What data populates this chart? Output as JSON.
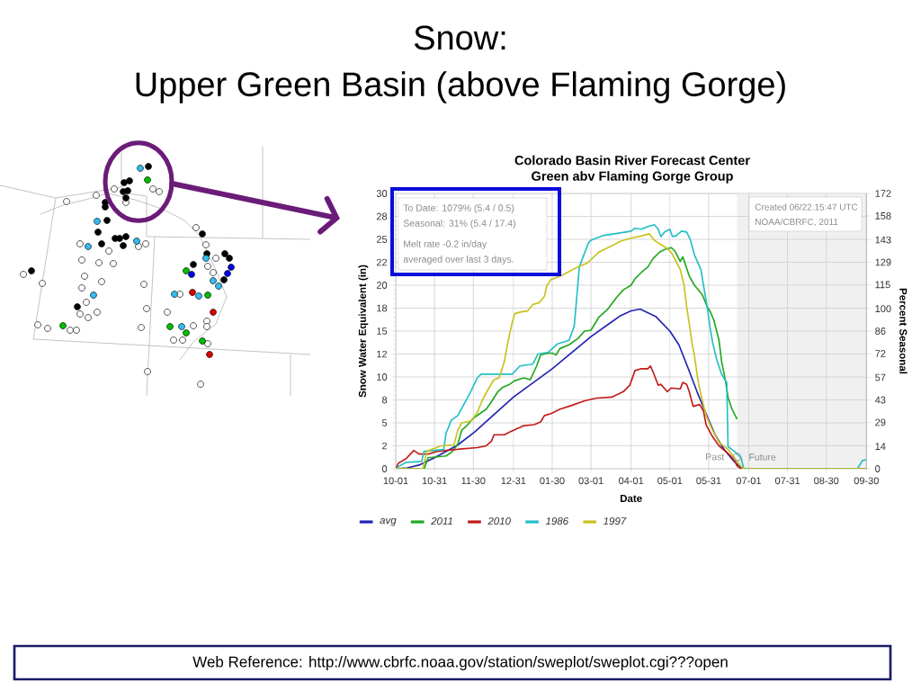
{
  "chart_data": {
    "type": "line",
    "title": "Snow:",
    "subtitle": "Upper Green Basin (above Flaming Gorge)",
    "xlabel": "Date",
    "ylabel": "Snow Water Equivalent (in)",
    "y2label": "Percent Seasonal",
    "xlim": [
      "2010-10-01",
      "2011-09-30"
    ],
    "xticks": [
      {
        "value": "2010-10-01",
        "label": "10-01"
      },
      {
        "value": "2010-10-31",
        "label": "10-31"
      },
      {
        "value": "2010-11-30",
        "label": "11-30"
      },
      {
        "value": "2010-12-31",
        "label": "12-31"
      },
      {
        "value": "2011-01-30",
        "label": "01-30"
      },
      {
        "value": "2011-03-01",
        "label": "03-01"
      },
      {
        "value": "2011-04-01",
        "label": "04-01"
      },
      {
        "value": "2011-05-01",
        "label": "05-01"
      },
      {
        "value": "2011-05-31",
        "label": "05-31"
      },
      {
        "value": "2011-07-01",
        "label": "07-01"
      },
      {
        "value": "2011-07-31",
        "label": "07-31"
      },
      {
        "value": "2011-08-30",
        "label": "08-30"
      },
      {
        "value": "2011-09-30",
        "label": "09-30"
      }
    ],
    "ylim": [
      0,
      30
    ],
    "yticks": [
      {
        "value": 0,
        "label": "0"
      },
      {
        "value": 2.5,
        "label": "2"
      },
      {
        "value": 5,
        "label": "5"
      },
      {
        "value": 7.5,
        "label": "8"
      },
      {
        "value": 10,
        "label": "10"
      },
      {
        "value": 12.5,
        "label": "12"
      },
      {
        "value": 15,
        "label": "15"
      },
      {
        "value": 17.5,
        "label": "18"
      },
      {
        "value": 20,
        "label": "20"
      },
      {
        "value": 22.5,
        "label": "22"
      },
      {
        "value": 25,
        "label": "25"
      },
      {
        "value": 27.5,
        "label": "28"
      },
      {
        "value": 30,
        "label": "30"
      }
    ],
    "y2lim": [
      0,
      172
    ],
    "y2ticks": [
      0,
      14,
      29,
      43,
      57,
      72,
      86,
      100,
      115,
      129,
      143,
      158,
      172
    ],
    "grid": true,
    "legend": "bottom",
    "series": [
      {
        "name": "avg",
        "color": "#2323b4",
        "x": [
          "2010-10-01",
          "2010-10-10",
          "2010-10-19",
          "2010-10-31",
          "2010-11-18",
          "2010-12-01",
          "2010-12-31",
          "2011-01-30",
          "2011-03-01",
          "2011-03-17",
          "2011-03-24",
          "2011-04-01",
          "2011-04-08",
          "2011-04-20",
          "2011-05-01",
          "2011-05-08",
          "2011-05-15",
          "2011-05-22",
          "2011-05-29",
          "2011-06-05",
          "2011-06-12",
          "2011-06-19",
          "2011-06-22",
          "2011-06-26",
          "2011-09-30"
        ],
        "values": [
          0,
          0.1,
          0.4,
          1.2,
          2.6,
          4.0,
          7.8,
          10.9,
          14.4,
          16.0,
          16.7,
          17.2,
          17.4,
          16.6,
          15.0,
          13.5,
          11.0,
          8.4,
          6.0,
          3.7,
          2.1,
          0.9,
          0.5,
          0,
          0
        ]
      },
      {
        "name": "2011",
        "color": "#21a821",
        "x": [
          "2010-10-01",
          "2010-10-23",
          "2010-10-26",
          "2010-11-09",
          "2010-11-14",
          "2010-11-18",
          "2010-11-21",
          "2010-11-25",
          "2010-11-30",
          "2010-12-05",
          "2010-12-10",
          "2010-12-14",
          "2010-12-19",
          "2010-12-23",
          "2010-12-28",
          "2011-01-01",
          "2011-01-08",
          "2011-01-13",
          "2011-01-18",
          "2011-01-21",
          "2011-01-27",
          "2011-01-30",
          "2011-02-02",
          "2011-02-05",
          "2011-02-12",
          "2011-02-19",
          "2011-02-24",
          "2011-03-01",
          "2011-03-07",
          "2011-03-14",
          "2011-03-21",
          "2011-03-26",
          "2011-04-01",
          "2011-04-04",
          "2011-04-09",
          "2011-04-14",
          "2011-04-18",
          "2011-04-23",
          "2011-04-27",
          "2011-05-02",
          "2011-05-05",
          "2011-05-09",
          "2011-05-11",
          "2011-05-16",
          "2011-05-20",
          "2011-05-26",
          "2011-05-30",
          "2011-06-01",
          "2011-06-04",
          "2011-06-08",
          "2011-06-10",
          "2011-06-13",
          "2011-06-15",
          "2011-06-18",
          "2011-06-22"
        ],
        "values": [
          0,
          0,
          1.2,
          1.4,
          1.9,
          2.7,
          4.2,
          4.7,
          5.5,
          6.0,
          6.5,
          7.3,
          8.4,
          8.9,
          9.2,
          9.6,
          9.9,
          9.7,
          11.2,
          12.4,
          12.6,
          12.6,
          12.4,
          13.1,
          13.5,
          14.2,
          15.0,
          15.1,
          16.5,
          17.4,
          18.7,
          19.5,
          20.0,
          20.7,
          21.4,
          22.0,
          22.9,
          23.6,
          23.9,
          24.1,
          23.7,
          22.6,
          23.1,
          21.0,
          20.0,
          19.0,
          17.6,
          17.2,
          16.2,
          14.0,
          11.7,
          9.6,
          7.8,
          6.5,
          5.4
        ]
      },
      {
        "name": "2010",
        "color": "#c21a1a",
        "x": [
          "2010-10-01",
          "2010-10-03",
          "2010-10-09",
          "2010-10-15",
          "2010-10-19",
          "2010-10-26",
          "2010-11-02",
          "2010-11-16",
          "2010-12-03",
          "2010-12-10",
          "2010-12-14",
          "2010-12-16",
          "2010-12-24",
          "2010-12-28",
          "2011-01-05",
          "2011-01-08",
          "2011-01-16",
          "2011-01-21",
          "2011-01-24",
          "2011-01-29",
          "2011-02-05",
          "2011-02-14",
          "2011-02-24",
          "2011-03-05",
          "2011-03-17",
          "2011-03-26",
          "2011-03-31",
          "2011-04-04",
          "2011-04-09",
          "2011-04-14",
          "2011-04-16",
          "2011-04-19",
          "2011-04-22",
          "2011-04-24",
          "2011-04-29",
          "2011-05-02",
          "2011-05-09",
          "2011-05-11",
          "2011-05-14",
          "2011-05-16",
          "2011-05-19",
          "2011-05-24",
          "2011-05-27",
          "2011-05-29",
          "2011-06-03",
          "2011-06-08",
          "2011-06-13",
          "2011-06-17",
          "2011-06-20",
          "2011-06-22",
          "2011-06-25",
          "2011-09-30"
        ],
        "values": [
          0,
          0.6,
          1.1,
          2.0,
          1.6,
          1.6,
          1.9,
          2.1,
          2.3,
          2.5,
          3.0,
          3.7,
          3.7,
          4.0,
          4.5,
          4.7,
          4.8,
          5.1,
          5.8,
          6.0,
          6.5,
          6.9,
          7.4,
          7.7,
          7.8,
          8.4,
          9.1,
          10.7,
          10.9,
          10.9,
          11.2,
          10.2,
          9.1,
          9.2,
          8.4,
          8.8,
          8.7,
          9.4,
          9.2,
          8.4,
          6.8,
          7.0,
          6.3,
          4.8,
          3.5,
          2.5,
          1.9,
          1.4,
          0.9,
          0.3,
          0,
          0
        ]
      },
      {
        "name": "1986",
        "color": "#23bfc6",
        "x": [
          "2010-10-01",
          "2010-10-05",
          "2010-10-09",
          "2010-10-21",
          "2010-10-23",
          "2010-11-07",
          "2010-11-09",
          "2010-11-13",
          "2010-11-18",
          "2010-11-23",
          "2010-11-28",
          "2010-12-03",
          "2010-12-06",
          "2010-12-30",
          "2011-01-05",
          "2011-01-15",
          "2011-01-19",
          "2011-01-27",
          "2011-02-03",
          "2011-02-12",
          "2011-02-16",
          "2011-02-18",
          "2011-02-20",
          "2011-02-27",
          "2011-03-01",
          "2011-03-10",
          "2011-03-19",
          "2011-03-28",
          "2011-04-01",
          "2011-04-04",
          "2011-04-09",
          "2011-04-14",
          "2011-04-19",
          "2011-04-22",
          "2011-04-24",
          "2011-04-27",
          "2011-05-01",
          "2011-05-03",
          "2011-05-06",
          "2011-05-10",
          "2011-05-14",
          "2011-05-17",
          "2011-05-20",
          "2011-05-25",
          "2011-05-27",
          "2011-05-30",
          "2011-06-01",
          "2011-06-03",
          "2011-06-06",
          "2011-06-10",
          "2011-06-14",
          "2011-06-15",
          "2011-06-20",
          "2011-06-25",
          "2011-06-27",
          "2011-06-28",
          "2011-09-23",
          "2011-09-27",
          "2011-09-30"
        ],
        "values": [
          0,
          0.4,
          0.7,
          0.8,
          1.9,
          2.1,
          3.9,
          5.3,
          5.8,
          7.1,
          8.4,
          9.9,
          10.3,
          10.3,
          11.2,
          11.4,
          12.5,
          12.7,
          13.6,
          14.0,
          15.5,
          18.7,
          22.0,
          24.6,
          24.9,
          25.4,
          25.6,
          25.8,
          25.9,
          26.2,
          26.1,
          26.4,
          26.6,
          26.1,
          25.3,
          25.8,
          26.1,
          25.3,
          25.4,
          25.9,
          25.8,
          24.9,
          23.3,
          21.7,
          20.0,
          17.5,
          15.5,
          13.8,
          12.0,
          10.3,
          9.4,
          2.4,
          1.9,
          1.2,
          0.1,
          0,
          0,
          0.9,
          1.0
        ]
      },
      {
        "name": "1997",
        "color": "#c9c21e",
        "x": [
          "2010-10-01",
          "2010-10-22",
          "2010-10-25",
          "2010-11-05",
          "2010-11-15",
          "2010-11-18",
          "2010-11-21",
          "2010-11-28",
          "2010-12-03",
          "2010-12-07",
          "2010-12-12",
          "2010-12-16",
          "2010-12-20",
          "2010-12-24",
          "2010-12-27",
          "2010-12-30",
          "2011-01-01",
          "2011-01-06",
          "2011-01-11",
          "2011-01-15",
          "2011-01-20",
          "2011-01-24",
          "2011-01-26",
          "2011-01-29",
          "2011-02-07",
          "2011-02-19",
          "2011-02-26",
          "2011-03-07",
          "2011-03-17",
          "2011-03-24",
          "2011-03-31",
          "2011-04-07",
          "2011-04-15",
          "2011-04-19",
          "2011-04-22",
          "2011-04-28",
          "2011-05-02",
          "2011-05-05",
          "2011-05-09",
          "2011-05-12",
          "2011-05-14",
          "2011-05-16",
          "2011-05-18",
          "2011-05-20",
          "2011-05-23",
          "2011-05-26",
          "2011-05-29",
          "2011-06-03",
          "2011-06-08",
          "2011-06-15",
          "2011-06-20",
          "2011-06-24",
          "2011-06-27",
          "2011-09-30"
        ],
        "values": [
          0,
          0,
          1.9,
          2.5,
          2.6,
          4.2,
          5.0,
          5.2,
          6.1,
          7.5,
          8.8,
          9.7,
          9.9,
          11.7,
          14.0,
          15.9,
          16.9,
          17.1,
          17.2,
          17.9,
          18.1,
          18.8,
          20.0,
          20.6,
          21.1,
          22.0,
          22.4,
          23.6,
          24.3,
          24.8,
          25.1,
          25.3,
          25.6,
          24.9,
          24.6,
          24.1,
          23.6,
          22.8,
          21.7,
          20.0,
          17.6,
          15.8,
          13.8,
          12.3,
          9.4,
          7.5,
          5.8,
          4.2,
          2.9,
          2.1,
          1.2,
          0.4,
          0,
          0
        ]
      }
    ],
    "bands": [
      {
        "axis": "x",
        "from": "2011-06-22",
        "to": "2011-09-30",
        "label": "Future",
        "color": "#f0f0f0"
      }
    ],
    "annotations": [
      "Colorado Basin River Forecast Center",
      "Green abv Flaming Gorge Group",
      "To Date: 1079% (5.4 / 0.5)",
      "Seasonal: 31% (5.4 / 17.4)",
      "Melt rate -0.2 in/day",
      "averaged over last 3 days.",
      "Created 06/22.15:47 UTC",
      "NOAA/CBRFC, 2011",
      {
        "text": "Past",
        "x": "2011-06-22",
        "y": 1.3
      },
      "Web Reference: http://www.cbrfc.noaa.gov/station/sweplot/sweplot.cgi???open"
    ]
  }
}
